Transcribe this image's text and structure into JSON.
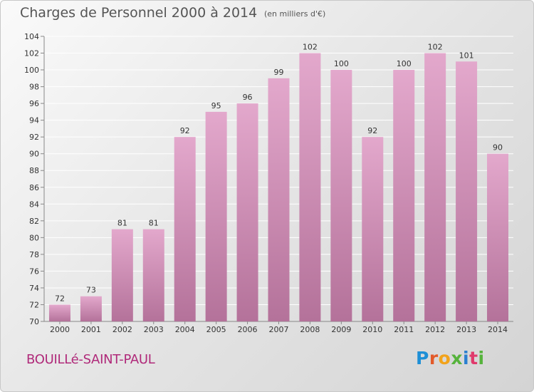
{
  "header": {
    "title": "Charges de Personnel 2000 à 2014",
    "subtitle": "(en milliers d'€)"
  },
  "footer": {
    "place": "BOUILLé-SAINT-PAUL",
    "logo_text": "Proxiti"
  },
  "colors": {
    "bar_top": "#e3a8cc",
    "bar_bottom": "#b4729a",
    "grid": "#ffffff",
    "axis": "#888888",
    "place_text": "#b02a7a"
  },
  "chart_data": {
    "type": "bar",
    "title": "Charges de Personnel 2000 à 2014",
    "subtitle": "(en milliers d'€)",
    "categories": [
      "2000",
      "2001",
      "2002",
      "2003",
      "2004",
      "2005",
      "2006",
      "2007",
      "2008",
      "2009",
      "2010",
      "2011",
      "2012",
      "2013",
      "2014"
    ],
    "values": [
      72,
      73,
      81,
      81,
      92,
      95,
      96,
      99,
      102,
      100,
      92,
      100,
      102,
      101,
      90
    ],
    "ylim": [
      70,
      104
    ],
    "yticks": [
      70,
      72,
      74,
      76,
      78,
      80,
      82,
      84,
      86,
      88,
      90,
      92,
      94,
      96,
      98,
      100,
      102,
      104
    ],
    "grid": true,
    "data_labels": true
  }
}
